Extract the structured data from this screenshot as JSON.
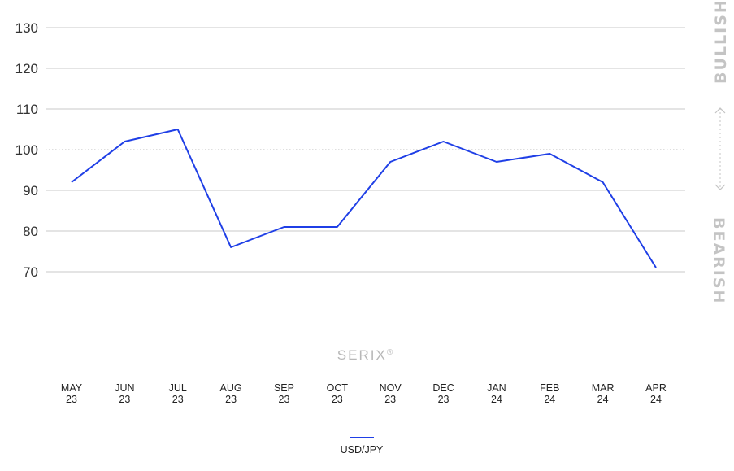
{
  "brand": {
    "name": "SERIX",
    "mark": "®"
  },
  "side_labels": {
    "top": "BULLISH",
    "bottom": "BEARISH"
  },
  "colors": {
    "series": "#1f3fe6",
    "grid": "#c8c8c8",
    "reference": "#bdbdbd",
    "muted": "#c4c4c4"
  },
  "chart_data": {
    "type": "line",
    "title": "",
    "xlabel": "",
    "ylabel": "",
    "ylim": [
      70,
      130
    ],
    "yticks": [
      70,
      80,
      90,
      100,
      110,
      120,
      130
    ],
    "reference_line": 100,
    "grid": true,
    "legend_position": "bottom-center",
    "categories": [
      {
        "month": "MAY",
        "year": "23"
      },
      {
        "month": "JUN",
        "year": "23"
      },
      {
        "month": "JUL",
        "year": "23"
      },
      {
        "month": "AUG",
        "year": "23"
      },
      {
        "month": "SEP",
        "year": "23"
      },
      {
        "month": "OCT",
        "year": "23"
      },
      {
        "month": "NOV",
        "year": "23"
      },
      {
        "month": "DEC",
        "year": "23"
      },
      {
        "month": "JAN",
        "year": "24"
      },
      {
        "month": "FEB",
        "year": "24"
      },
      {
        "month": "MAR",
        "year": "24"
      },
      {
        "month": "APR",
        "year": "24"
      }
    ],
    "series": [
      {
        "name": "USD/JPY",
        "values": [
          92,
          102,
          105,
          76,
          81,
          81,
          97,
          102,
          97,
          99,
          92,
          71
        ]
      }
    ]
  }
}
